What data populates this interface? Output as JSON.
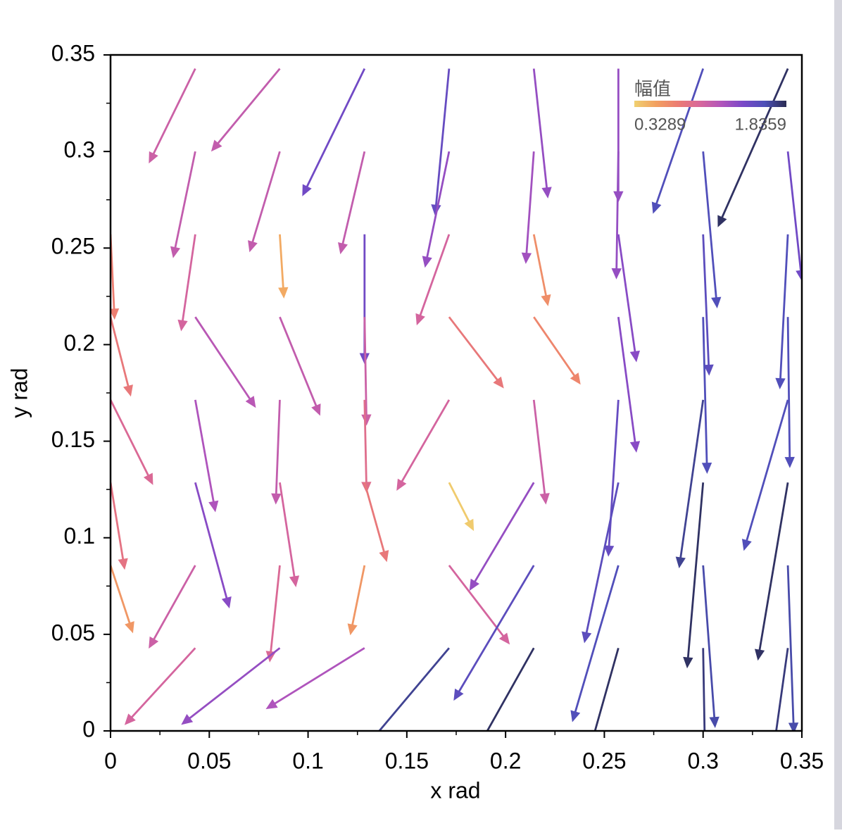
{
  "chart_data": {
    "type": "quiver",
    "xlabel": "x rad",
    "ylabel": "y rad",
    "xlim": [
      0,
      0.35
    ],
    "ylim": [
      0,
      0.35
    ],
    "xticks": [
      0,
      0.05,
      0.1,
      0.15,
      0.2,
      0.25,
      0.3,
      0.35
    ],
    "yticks": [
      0,
      0.05,
      0.1,
      0.15,
      0.2,
      0.25,
      0.3,
      0.35
    ],
    "colorbar": {
      "title": "幅值",
      "clim": [
        0.3289,
        1.8359
      ],
      "ticks": [
        0.3289,
        1.8359
      ],
      "colormap": [
        "#f0d070",
        "#f2a060",
        "#ec7c72",
        "#d8679a",
        "#b255bb",
        "#7a48c8",
        "#4d50b8",
        "#2a2c52"
      ]
    },
    "x": [
      0,
      0,
      0,
      0,
      0,
      0.0429,
      0.0429,
      0.0429,
      0.0429,
      0.0429,
      0.0429,
      0.0429,
      0.0429,
      0.0857,
      0.0857,
      0.0857,
      0.0857,
      0.0857,
      0.0857,
      0.0857,
      0.0857,
      0.1286,
      0.1286,
      0.1286,
      0.1286,
      0.1286,
      0.1286,
      0.1286,
      0.1286,
      0.1714,
      0.1714,
      0.1714,
      0.1714,
      0.1714,
      0.1714,
      0.1714,
      0.1714,
      0.2143,
      0.2143,
      0.2143,
      0.2143,
      0.2143,
      0.2143,
      0.2143,
      0.2143,
      0.2571,
      0.2571,
      0.2571,
      0.2571,
      0.2571,
      0.2571,
      0.2571,
      0.2571,
      0.3,
      0.3,
      0.3,
      0.3,
      0.3,
      0.3,
      0.3,
      0.3,
      0.3429,
      0.3429,
      0.3429,
      0.3429,
      0.3429,
      0.3429,
      0.3429,
      0.3429
    ],
    "y": [
      0.2571,
      0.2143,
      0.1714,
      0.1286,
      0.0857,
      0.3429,
      0.3,
      0.2571,
      0.2143,
      0.1714,
      0.1286,
      0.0857,
      0.0429,
      0.3429,
      0.3,
      0.2571,
      0.2143,
      0.1714,
      0.1286,
      0.0857,
      0.0429,
      0.3429,
      0.3,
      0.2571,
      0.2143,
      0.1714,
      0.1286,
      0.0857,
      0.0429,
      0.3429,
      0.3,
      0.2571,
      0.2143,
      0.1714,
      0.1286,
      0.0857,
      0.0429,
      0.3429,
      0.3,
      0.2571,
      0.2143,
      0.1714,
      0.1286,
      0.0857,
      0.0429,
      0.3429,
      0.3,
      0.2571,
      0.2143,
      0.1714,
      0.1286,
      0.0857,
      0.0429,
      0.3429,
      0.3,
      0.2571,
      0.2143,
      0.1714,
      0.1286,
      0.0857,
      0.0429,
      0.3429,
      0.3,
      0.2571,
      0.2143,
      0.1714,
      0.1286,
      0.0857,
      0.0429
    ],
    "u": [
      0.002,
      0.01,
      0.021,
      0.007,
      0.011,
      -0.023,
      -0.011,
      -0.007,
      0.03,
      0.01,
      0.017,
      -0.023,
      -0.035,
      -0.034,
      -0.015,
      0.002,
      0.02,
      -0.002,
      0.008,
      -0.005,
      -0.049,
      -0.031,
      -0.012,
      0,
      0.001,
      0.001,
      0.011,
      -0.007,
      -0.049,
      -0.007,
      -0.012,
      -0.016,
      0.027,
      -0.026,
      0.012,
      0.03,
      -0.042,
      0.007,
      -0.004,
      0.007,
      0.023,
      0.006,
      -0.032,
      -0.04,
      -0.028,
      0,
      -0.001,
      0.009,
      0.009,
      -0.005,
      -0.017,
      -0.023,
      -0.016,
      -0.025,
      0.007,
      0.003,
      0.002,
      -0.012,
      -0.008,
      0.006,
      0.001,
      -0.035,
      0.007,
      -0.004,
      0.001,
      -0.022,
      -0.015,
      0.003,
      -0.007
    ],
    "v": [
      -0.043,
      -0.04,
      -0.043,
      -0.044,
      -0.034,
      -0.048,
      -0.054,
      -0.049,
      -0.046,
      -0.057,
      -0.064,
      -0.042,
      -0.039,
      -0.042,
      -0.051,
      -0.032,
      -0.05,
      -0.053,
      -0.053,
      -0.049,
      -0.039,
      -0.065,
      -0.052,
      -0.066,
      -0.055,
      -0.047,
      -0.04,
      -0.035,
      -0.031,
      -0.075,
      -0.059,
      -0.046,
      -0.036,
      -0.046,
      -0.024,
      -0.04,
      -0.051,
      -0.066,
      -0.057,
      -0.036,
      -0.034,
      -0.053,
      -0.055,
      -0.069,
      -0.051,
      -0.068,
      -0.065,
      -0.065,
      -0.069,
      -0.08,
      -0.082,
      -0.08,
      -0.058,
      -0.074,
      -0.08,
      -0.072,
      -0.08,
      -0.086,
      -0.095,
      -0.083,
      -0.058,
      -0.081,
      -0.066,
      -0.079,
      -0.077,
      -0.077,
      -0.091,
      -0.086,
      -0.051
    ],
    "magnitude": [
      0.75,
      0.8,
      0.95,
      0.85,
      0.6,
      1.05,
      1.1,
      1.0,
      1.15,
      1.2,
      1.35,
      1.05,
      1.0,
      1.1,
      1.1,
      0.5,
      1.1,
      1.1,
      1.0,
      0.95,
      1.3,
      1.45,
      1.1,
      1.45,
      1.05,
      0.9,
      0.8,
      0.6,
      1.2,
      1.5,
      1.3,
      1.0,
      0.8,
      1.0,
      0.35,
      1.0,
      1.7,
      1.3,
      1.25,
      0.65,
      0.7,
      1.05,
      1.3,
      1.55,
      1.8,
      1.3,
      1.3,
      1.35,
      1.35,
      1.5,
      1.55,
      1.6,
      1.8,
      1.6,
      1.6,
      1.55,
      1.6,
      1.7,
      1.8,
      1.65,
      1.75,
      1.8,
      1.45,
      1.6,
      1.6,
      1.6,
      1.8,
      1.65,
      1.75
    ]
  }
}
